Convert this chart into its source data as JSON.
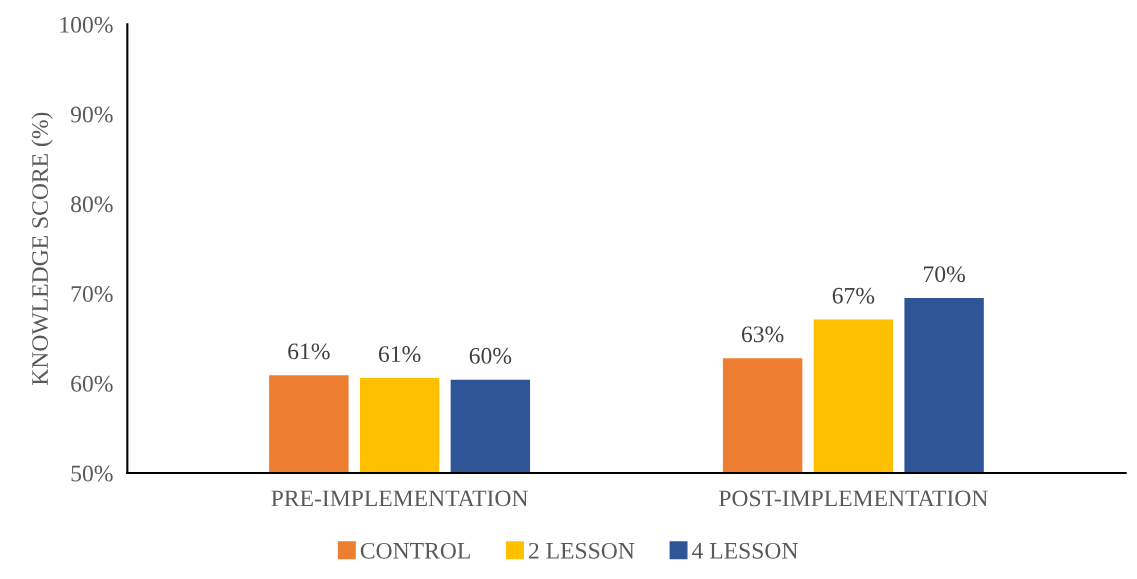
{
  "chart_data": {
    "type": "bar",
    "ylabel": "KNOWLEDGE SCORE (%)",
    "categories": [
      "PRE-IMPLEMENTATION",
      "POST-IMPLEMENTATION"
    ],
    "series": [
      {
        "name": "CONTROL",
        "color": "#ed7d31",
        "values": [
          60.9,
          62.8
        ],
        "value_labels": [
          "61%",
          "63%"
        ]
      },
      {
        "name": "2 LESSON",
        "color": "#ffc000",
        "values": [
          60.6,
          67.1
        ],
        "value_labels": [
          "61%",
          "67%"
        ]
      },
      {
        "name": "4 LESSON",
        "color": "#2f5597",
        "values": [
          60.4,
          69.5
        ],
        "value_labels": [
          "60%",
          "70%"
        ]
      }
    ],
    "ylim": [
      50,
      100
    ],
    "yticks": [
      {
        "value": 50,
        "label": "50%"
      },
      {
        "value": 60,
        "label": "60%"
      },
      {
        "value": 70,
        "label": "70%"
      },
      {
        "value": 80,
        "label": "80%"
      },
      {
        "value": 90,
        "label": "90%"
      },
      {
        "value": 100,
        "label": "100%"
      }
    ],
    "grid": false,
    "legend": "bottom"
  }
}
